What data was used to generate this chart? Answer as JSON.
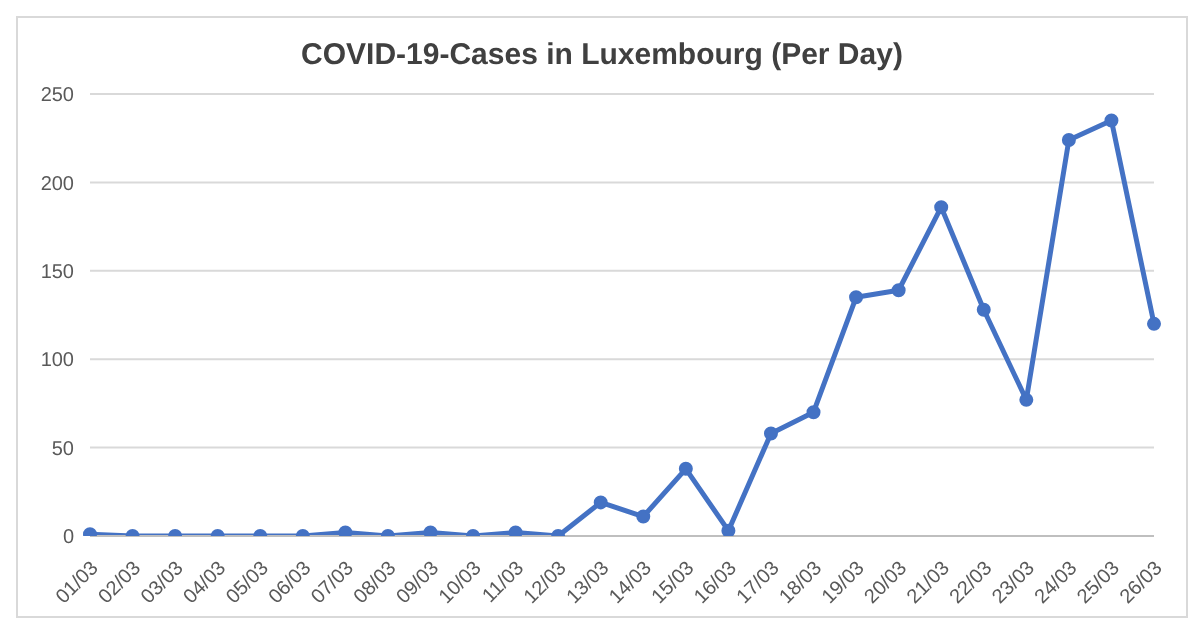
{
  "chart_data": {
    "type": "line",
    "title": "COVID-19-Cases in Luxembourg (Per Day)",
    "categories": [
      "01/03",
      "02/03",
      "03/03",
      "04/03",
      "05/03",
      "06/03",
      "07/03",
      "08/03",
      "09/03",
      "10/03",
      "11/03",
      "12/03",
      "13/03",
      "14/03",
      "15/03",
      "16/03",
      "17/03",
      "18/03",
      "19/03",
      "20/03",
      "21/03",
      "22/03",
      "23/03",
      "24/03",
      "25/03",
      "26/03"
    ],
    "series": [
      {
        "color": "#4472c4",
        "values": [
          1,
          0,
          0,
          0,
          0,
          0,
          2,
          0,
          2,
          0,
          2,
          0,
          19,
          11,
          38,
          3,
          58,
          70,
          135,
          139,
          186,
          128,
          77,
          224,
          235,
          120
        ]
      }
    ],
    "ylim": [
      0,
      250
    ],
    "yticks": [
      0,
      50,
      100,
      150,
      200,
      250
    ],
    "grid": "y",
    "marker": "circle",
    "line_style": "solid",
    "legend": false
  }
}
